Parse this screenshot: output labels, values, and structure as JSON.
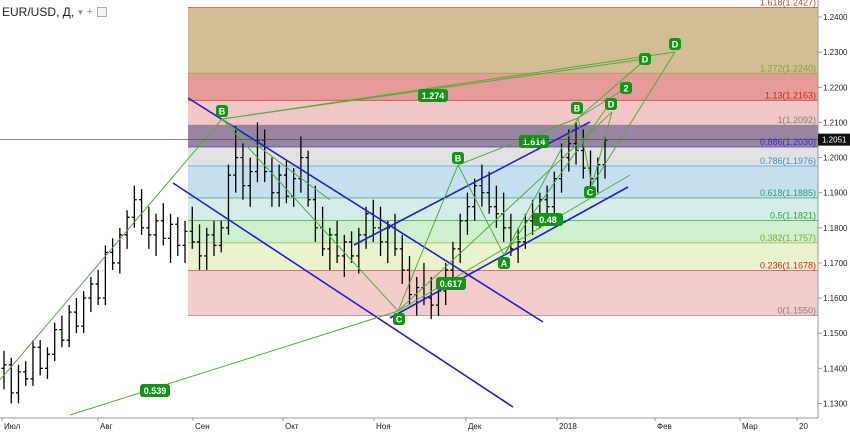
{
  "header": {
    "symbol": "EUR/USD, Д,",
    "dropdown_icon": "chevron-down-icon",
    "add_icon": "plus-icon",
    "collapse_icon": "square-icon"
  },
  "colors": {
    "bars": "#000000",
    "channel": "#1f1fd4",
    "wave": "#4caf3a",
    "label_bg": "#149414",
    "label_text": "#ffffff"
  },
  "chart_data": {
    "type": "ohlc",
    "x_labels": [
      "Июл",
      "Авг",
      "Сен",
      "Окт",
      "Ноя",
      "Дек",
      "2018",
      "Фев",
      "Мар",
      "20"
    ],
    "ylim": [
      1.125,
      1.244
    ],
    "y_ticks": [
      "1.2400",
      "1.2300",
      "1.2200",
      "1.2100",
      "1.2000",
      "1.1900",
      "1.1800",
      "1.1700",
      "1.1600",
      "1.1500",
      "1.1400",
      "1.1300"
    ],
    "last_price": "1.2051",
    "fib_levels": [
      {
        "label": "1.618(1.2427)",
        "value": 1.2427,
        "band_color": "#cbb184",
        "text_color": "#a0522d"
      },
      {
        "label": "1.272(1.2240)",
        "value": 1.224,
        "band_color": "#e08a85",
        "text_color": "#8aa62b"
      },
      {
        "label": "1.13(1.2163)",
        "value": 1.2163,
        "band_color": "#f0bcbc",
        "text_color": "#d32222"
      },
      {
        "label": "1(1.2092)",
        "value": 1.2092,
        "band_color": "#8a6d94",
        "text_color": "#808080"
      },
      {
        "label": "0.886(1.2030)",
        "value": 1.203,
        "band_color": "#dddddd",
        "text_color": "#3030cc"
      },
      {
        "label": "0.786(1.1976)",
        "value": 1.1976,
        "band_color": "#bcd9ee",
        "text_color": "#3a8fcc"
      },
      {
        "label": "0.618(1.1885)",
        "value": 1.1885,
        "band_color": "#cfe9e4",
        "text_color": "#2aa070"
      },
      {
        "label": "0.5(1.1821)",
        "value": 1.1821,
        "band_color": "#c5edc5",
        "text_color": "#2aa52a"
      },
      {
        "label": "0.382(1.1757)",
        "value": 1.1757,
        "band_color": "#e5f2c6",
        "text_color": "#8aa62b"
      },
      {
        "label": "0.236(1.1678)",
        "value": 1.1678,
        "band_color": "#f2c3c3",
        "text_color": "#d32222"
      },
      {
        "label": "0(1.1550)",
        "value": 1.155,
        "band_color": "#ffffff",
        "text_color": "#808080"
      }
    ],
    "wave_labels": [
      "B",
      "C",
      "B",
      "A",
      "C",
      "B",
      "D",
      "2",
      "D",
      "D"
    ],
    "ratio_labels": [
      "1.274",
      "1.614",
      "0.48",
      "0.617",
      "0.539"
    ],
    "bars": [
      [
        1.14,
        1.145,
        1.134,
        1.141
      ],
      [
        1.141,
        1.143,
        1.13,
        1.133
      ],
      [
        1.133,
        1.141,
        1.13,
        1.139
      ],
      [
        1.139,
        1.142,
        1.135,
        1.137
      ],
      [
        1.137,
        1.148,
        1.135,
        1.146
      ],
      [
        1.146,
        1.148,
        1.138,
        1.14
      ],
      [
        1.14,
        1.146,
        1.137,
        1.144
      ],
      [
        1.144,
        1.153,
        1.142,
        1.151
      ],
      [
        1.151,
        1.155,
        1.146,
        1.148
      ],
      [
        1.148,
        1.158,
        1.146,
        1.156
      ],
      [
        1.156,
        1.16,
        1.15,
        1.152
      ],
      [
        1.152,
        1.162,
        1.15,
        1.16
      ],
      [
        1.16,
        1.166,
        1.156,
        1.164
      ],
      [
        1.164,
        1.168,
        1.158,
        1.16
      ],
      [
        1.16,
        1.175,
        1.158,
        1.173
      ],
      [
        1.173,
        1.177,
        1.168,
        1.17
      ],
      [
        1.17,
        1.18,
        1.167,
        1.178
      ],
      [
        1.178,
        1.185,
        1.174,
        1.183
      ],
      [
        1.183,
        1.192,
        1.18,
        1.188
      ],
      [
        1.188,
        1.191,
        1.178,
        1.18
      ],
      [
        1.18,
        1.186,
        1.174,
        1.178
      ],
      [
        1.178,
        1.184,
        1.172,
        1.182
      ],
      [
        1.182,
        1.187,
        1.175,
        1.177
      ],
      [
        1.177,
        1.184,
        1.17,
        1.181
      ],
      [
        1.181,
        1.183,
        1.172,
        1.175
      ],
      [
        1.175,
        1.182,
        1.17,
        1.179
      ],
      [
        1.179,
        1.186,
        1.174,
        1.176
      ],
      [
        1.176,
        1.181,
        1.168,
        1.172
      ],
      [
        1.172,
        1.18,
        1.168,
        1.178
      ],
      [
        1.178,
        1.182,
        1.172,
        1.175
      ],
      [
        1.175,
        1.182,
        1.173,
        1.18
      ],
      [
        1.18,
        1.198,
        1.178,
        1.195
      ],
      [
        1.195,
        1.209,
        1.19,
        1.2
      ],
      [
        1.2,
        1.204,
        1.188,
        1.192
      ],
      [
        1.192,
        1.2,
        1.186,
        1.196
      ],
      [
        1.196,
        1.21,
        1.193,
        1.205
      ],
      [
        1.205,
        1.208,
        1.193,
        1.196
      ],
      [
        1.196,
        1.2,
        1.186,
        1.19
      ],
      [
        1.19,
        1.198,
        1.186,
        1.195
      ],
      [
        1.195,
        1.199,
        1.187,
        1.189
      ],
      [
        1.189,
        1.197,
        1.186,
        1.194
      ],
      [
        1.194,
        1.206,
        1.19,
        1.2
      ],
      [
        1.2,
        1.202,
        1.186,
        1.188
      ],
      [
        1.188,
        1.192,
        1.176,
        1.18
      ],
      [
        1.18,
        1.186,
        1.172,
        1.174
      ],
      [
        1.174,
        1.18,
        1.168,
        1.178
      ],
      [
        1.178,
        1.182,
        1.17,
        1.172
      ],
      [
        1.172,
        1.178,
        1.166,
        1.176
      ],
      [
        1.176,
        1.179,
        1.17,
        1.172
      ],
      [
        1.172,
        1.18,
        1.167,
        1.178
      ],
      [
        1.178,
        1.186,
        1.174,
        1.184
      ],
      [
        1.184,
        1.188,
        1.176,
        1.18
      ],
      [
        1.18,
        1.186,
        1.172,
        1.176
      ],
      [
        1.176,
        1.182,
        1.17,
        1.18
      ],
      [
        1.18,
        1.184,
        1.172,
        1.174
      ],
      [
        1.174,
        1.178,
        1.164,
        1.168
      ],
      [
        1.168,
        1.172,
        1.158,
        1.161
      ],
      [
        1.161,
        1.166,
        1.155,
        1.163
      ],
      [
        1.163,
        1.17,
        1.158,
        1.16
      ],
      [
        1.16,
        1.166,
        1.154,
        1.158
      ],
      [
        1.158,
        1.164,
        1.155,
        1.162
      ],
      [
        1.162,
        1.17,
        1.158,
        1.168
      ],
      [
        1.168,
        1.176,
        1.164,
        1.174
      ],
      [
        1.174,
        1.184,
        1.17,
        1.182
      ],
      [
        1.182,
        1.19,
        1.178,
        1.186
      ],
      [
        1.186,
        1.194,
        1.182,
        1.192
      ],
      [
        1.192,
        1.198,
        1.186,
        1.19
      ],
      [
        1.19,
        1.196,
        1.184,
        1.186
      ],
      [
        1.186,
        1.192,
        1.18,
        1.184
      ],
      [
        1.184,
        1.19,
        1.176,
        1.18
      ],
      [
        1.18,
        1.184,
        1.172,
        1.174
      ],
      [
        1.174,
        1.18,
        1.17,
        1.176
      ],
      [
        1.176,
        1.184,
        1.174,
        1.182
      ],
      [
        1.182,
        1.188,
        1.178,
        1.184
      ],
      [
        1.184,
        1.19,
        1.18,
        1.188
      ],
      [
        1.188,
        1.192,
        1.182,
        1.186
      ],
      [
        1.186,
        1.196,
        1.184,
        1.194
      ],
      [
        1.194,
        1.204,
        1.19,
        1.2
      ],
      [
        1.2,
        1.208,
        1.196,
        1.204
      ],
      [
        1.204,
        1.21,
        1.198,
        1.202
      ],
      [
        1.202,
        1.208,
        1.194,
        1.197
      ],
      [
        1.197,
        1.202,
        1.19,
        1.194
      ],
      [
        1.194,
        1.2,
        1.19,
        1.198
      ],
      [
        1.198,
        1.206,
        1.194,
        1.205
      ]
    ]
  }
}
